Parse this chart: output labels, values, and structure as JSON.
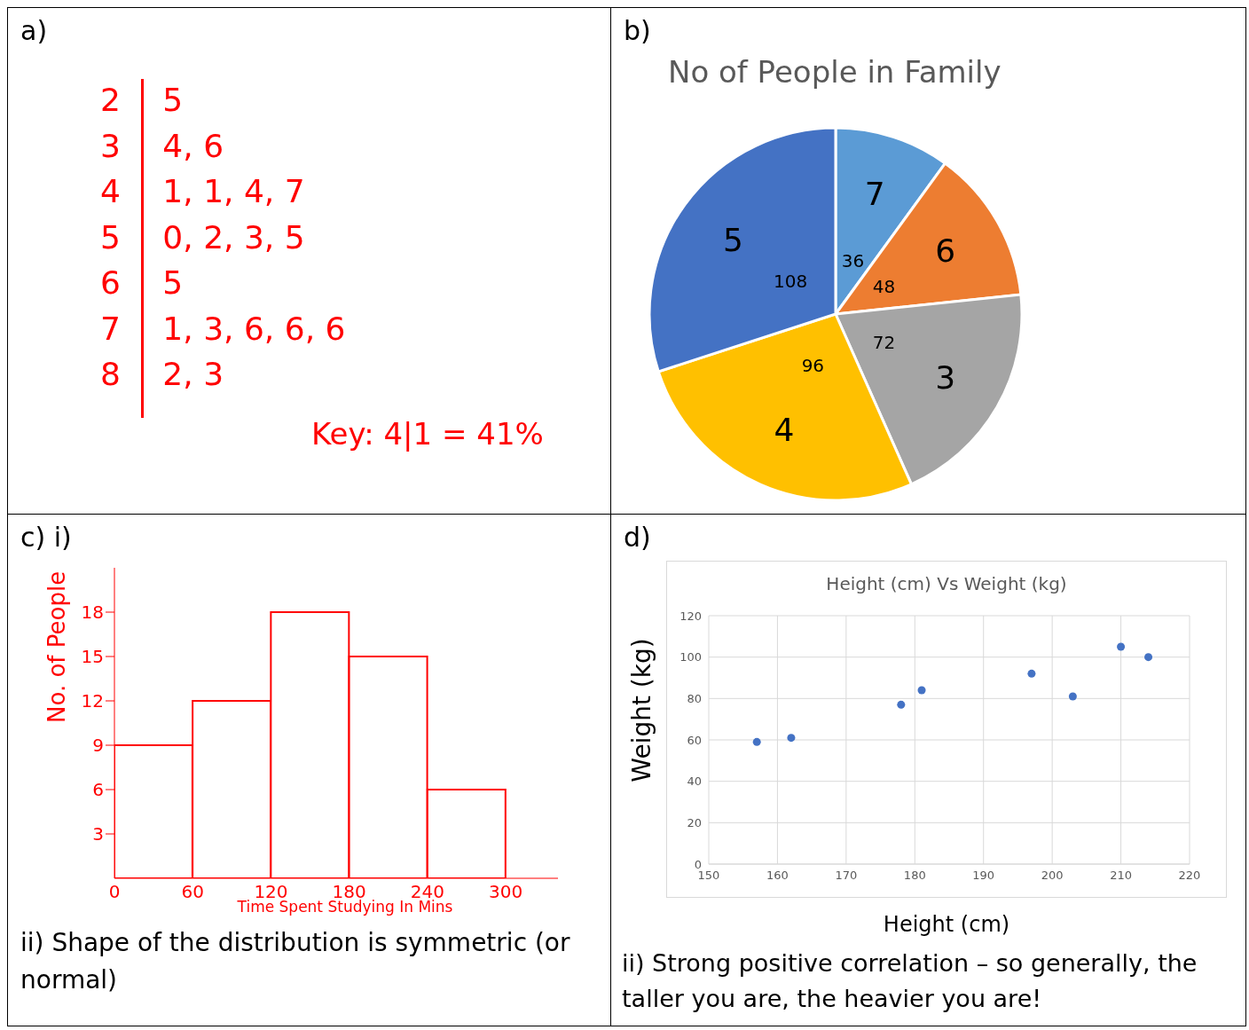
{
  "chart_data": [
    {
      "type": "other",
      "annotations": [
        "a)",
        "2 5",
        "3 4, 6",
        "4 1, 1, 4, 7",
        "5 0, 2, 3, 5",
        "6 5",
        "7 1, 3, 6, 6, 6",
        "8 2, 3",
        "Key: 4|1 = 41%"
      ],
      "color": "#ff0000"
    },
    {
      "type": "pie",
      "title": "No of People in Family",
      "annotations": [
        "b)"
      ],
      "categories": [
        "7",
        "6",
        "3",
        "4",
        "5"
      ],
      "values": [
        36,
        48,
        72,
        96,
        108
      ],
      "colors": [
        "#5b9bd5",
        "#ed7d31",
        "#a5a5a5",
        "#ffc000",
        "#4472c4"
      ],
      "data_labels": true
    },
    {
      "type": "histogram",
      "annotations": [
        "c) i)",
        "ii) Shape of the distribution is symmetric (or normal)"
      ],
      "xlabel": "Time Spent Studying In Mins",
      "ylabel": "No. of People",
      "bins": [
        0,
        60,
        120,
        180,
        240,
        300
      ],
      "values": [
        9,
        12,
        18,
        15,
        6
      ],
      "color": "#ff0000",
      "xlim": [
        0,
        340
      ],
      "xticks": [
        0,
        60,
        120,
        180,
        240,
        300
      ],
      "ylim": [
        0,
        21
      ],
      "yticks": [
        3,
        6,
        9,
        12,
        15,
        18
      ]
    },
    {
      "type": "scatter",
      "title": "Height (cm) Vs Weight (kg)",
      "annotations": [
        "d)",
        "ii) Strong positive correlation – so generally, the taller you are, the heavier you are!"
      ],
      "xlabel": "Height (cm)",
      "ylabel": "Weight (kg)",
      "x": [
        157,
        162,
        178,
        181,
        197,
        203,
        210,
        214
      ],
      "values": [
        59,
        61,
        77,
        84,
        92,
        81,
        105,
        100
      ],
      "color": "#4472c4",
      "xlim": [
        150,
        220
      ],
      "xticks": [
        150,
        160,
        170,
        180,
        190,
        200,
        210,
        220
      ],
      "ylim": [
        0,
        120
      ],
      "yticks": [
        0,
        20,
        40,
        60,
        80,
        100,
        120
      ],
      "grid": true,
      "marker": "circle"
    }
  ]
}
